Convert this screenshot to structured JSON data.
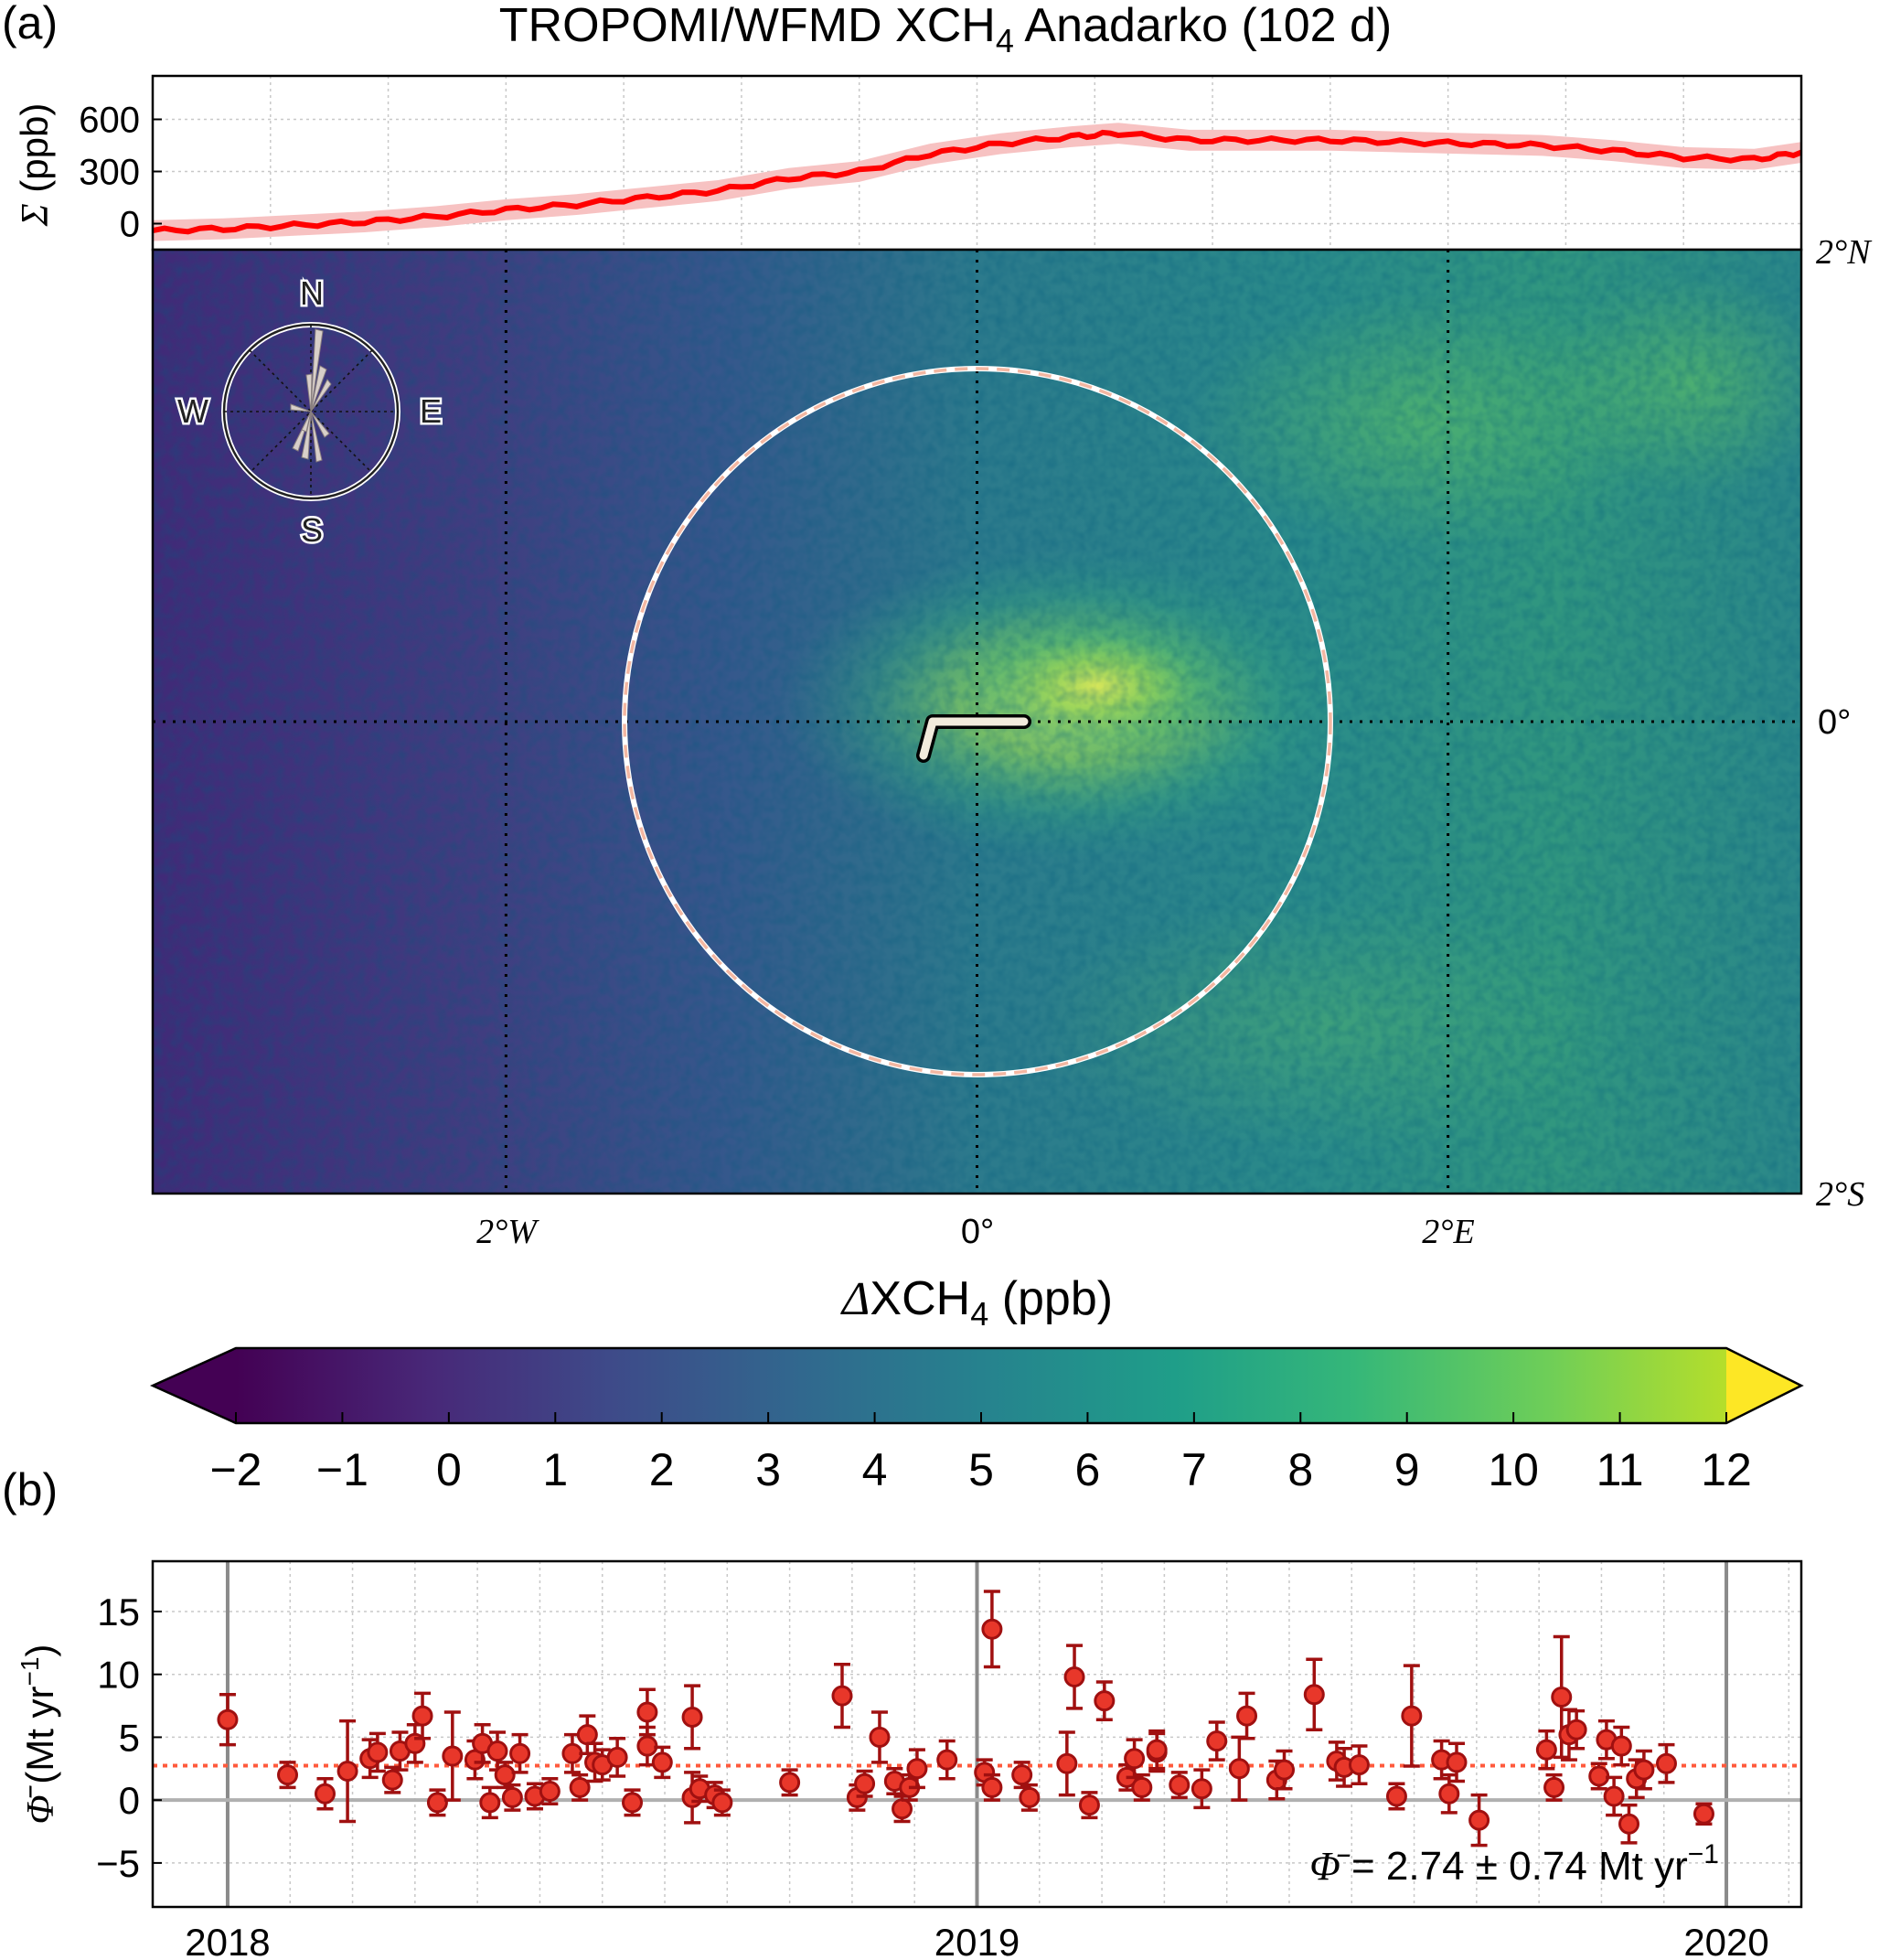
{
  "panel_a": {
    "label": "(a)",
    "title_main": "TROPOMI/WFMD XCH",
    "title_sub": "4",
    "title_tail": " Anadarko (102 d)",
    "sigma_axis": {
      "symbol": "Σ",
      "unit": " (ppb)",
      "ticks": [
        "600",
        "300",
        "0"
      ]
    },
    "lat_labels": {
      "top": "2°N",
      "mid": "0°",
      "bottom": "2°S"
    },
    "lon_labels": {
      "left": "2°W",
      "mid": "0°",
      "right": "2°E"
    },
    "compass": {
      "n": "N",
      "e": "E",
      "s": "S",
      "w": "W"
    },
    "colorbar": {
      "label_symbol": "Δ",
      "label_main": "XCH",
      "label_sub": "4",
      "label_unit": " (ppb)",
      "ticks": [
        "−2",
        "−1",
        "0",
        "1",
        "2",
        "3",
        "4",
        "5",
        "6",
        "7",
        "8",
        "9",
        "10",
        "11",
        "12"
      ]
    }
  },
  "panel_b": {
    "label": "(b)",
    "y_axis": {
      "symbol": "Φ̄",
      "unit": " (Mt yr",
      "exp": "−1",
      "close": ")",
      "ticks": [
        "15",
        "10",
        "5",
        "0",
        "−5"
      ]
    },
    "x_ticks": [
      "2018",
      "2019",
      "2020"
    ],
    "annotation": {
      "symbol": "Φ̄",
      "text": " = 2.74 ± 0.74 Mt yr",
      "exp": "−1"
    }
  },
  "colors": {
    "series_line": "#ff0000",
    "series_band": "#f7c2c2",
    "point_fill": "#e8372a",
    "point_edge": "#a01010",
    "mean_line": "#ff5a3c",
    "zero_line": "#b0b0b0",
    "circle": "#f3c8b4"
  },
  "chart_data": [
    {
      "type": "line",
      "panel": "a-top",
      "ylim": [
        -150,
        850
      ],
      "x_deg": [
        -3.5,
        -3.2,
        -2.9,
        -2.6,
        -2.3,
        -2.0,
        -1.7,
        -1.4,
        -1.1,
        -0.8,
        -0.5,
        -0.2,
        0.1,
        0.4,
        0.6,
        0.9,
        1.2,
        1.5,
        1.8,
        2.1,
        2.4,
        2.7,
        3.0,
        3.3,
        3.5
      ],
      "sigma": [
        -40,
        -30,
        -10,
        10,
        40,
        80,
        110,
        150,
        190,
        260,
        300,
        400,
        460,
        500,
        520,
        480,
        480,
        480,
        470,
        460,
        450,
        420,
        380,
        370,
        410
      ],
      "band_halfwidth": 60
    },
    {
      "type": "heatmap",
      "panel": "a-map",
      "x_range_deg": [
        -3.5,
        3.5
      ],
      "y_range_deg": [
        -2,
        2
      ],
      "colormap": "viridis",
      "vmin": -2,
      "vmax": 12,
      "circle_radius_deg": 1.5
    },
    {
      "type": "scatter",
      "panel": "b",
      "ylim": [
        -8.5,
        19
      ],
      "xlim": [
        2017.9,
        2020.1
      ],
      "mean": 2.74,
      "points": [
        [
          2018.0,
          6.4,
          2.0
        ],
        [
          2018.08,
          2.0,
          1.0
        ],
        [
          2018.13,
          0.5,
          1.2
        ],
        [
          2018.16,
          2.3,
          4.0
        ],
        [
          2018.19,
          3.3,
          1.5
        ],
        [
          2018.2,
          3.8,
          1.5
        ],
        [
          2018.22,
          1.6,
          1.0
        ],
        [
          2018.23,
          3.9,
          1.5
        ],
        [
          2018.25,
          4.5,
          1.5
        ],
        [
          2018.26,
          6.7,
          1.8
        ],
        [
          2018.28,
          -0.2,
          1.0
        ],
        [
          2018.3,
          3.5,
          3.5
        ],
        [
          2018.33,
          3.2,
          1.5
        ],
        [
          2018.34,
          4.5,
          1.5
        ],
        [
          2018.35,
          -0.2,
          1.2
        ],
        [
          2018.36,
          3.9,
          1.5
        ],
        [
          2018.37,
          2.0,
          1.0
        ],
        [
          2018.38,
          0.2,
          1.0
        ],
        [
          2018.39,
          3.7,
          1.5
        ],
        [
          2018.41,
          0.3,
          1.0
        ],
        [
          2018.43,
          0.7,
          1.0
        ],
        [
          2018.46,
          3.7,
          1.5
        ],
        [
          2018.47,
          1.0,
          1.0
        ],
        [
          2018.48,
          5.2,
          1.5
        ],
        [
          2018.49,
          3.0,
          1.5
        ],
        [
          2018.5,
          2.8,
          1.2
        ],
        [
          2018.52,
          3.4,
          1.5
        ],
        [
          2018.54,
          -0.2,
          1.0
        ],
        [
          2018.56,
          7.0,
          1.8
        ],
        [
          2018.56,
          4.3,
          1.5
        ],
        [
          2018.58,
          3.0,
          1.2
        ],
        [
          2018.62,
          6.6,
          2.5
        ],
        [
          2018.62,
          0.2,
          2.0
        ],
        [
          2018.63,
          0.9,
          1.0
        ],
        [
          2018.65,
          0.4,
          1.0
        ],
        [
          2018.66,
          -0.2,
          1.0
        ],
        [
          2018.75,
          1.4,
          1.0
        ],
        [
          2018.82,
          8.3,
          2.5
        ],
        [
          2018.84,
          0.2,
          1.0
        ],
        [
          2018.85,
          1.3,
          1.0
        ],
        [
          2018.87,
          5.0,
          2.0
        ],
        [
          2018.89,
          1.5,
          1.0
        ],
        [
          2018.9,
          -0.7,
          1.0
        ],
        [
          2018.91,
          1.0,
          1.0
        ],
        [
          2018.92,
          2.5,
          1.5
        ],
        [
          2018.96,
          3.2,
          1.5
        ],
        [
          2019.01,
          2.2,
          1.0
        ],
        [
          2019.02,
          13.6,
          3.0
        ],
        [
          2019.02,
          1.0,
          1.0
        ],
        [
          2019.06,
          2.0,
          1.0
        ],
        [
          2019.07,
          0.2,
          1.0
        ],
        [
          2019.12,
          2.9,
          2.5
        ],
        [
          2019.13,
          9.8,
          2.5
        ],
        [
          2019.15,
          -0.4,
          1.0
        ],
        [
          2019.17,
          7.9,
          1.5
        ],
        [
          2019.2,
          1.8,
          1.0
        ],
        [
          2019.21,
          3.3,
          1.5
        ],
        [
          2019.22,
          1.0,
          1.0
        ],
        [
          2019.24,
          3.8,
          1.5
        ],
        [
          2019.24,
          4.0,
          1.5
        ],
        [
          2019.27,
          1.2,
          1.0
        ],
        [
          2019.3,
          0.9,
          1.5
        ],
        [
          2019.32,
          4.7,
          1.5
        ],
        [
          2019.35,
          2.5,
          2.5
        ],
        [
          2019.36,
          6.7,
          1.8
        ],
        [
          2019.4,
          1.6,
          1.5
        ],
        [
          2019.41,
          2.4,
          1.5
        ],
        [
          2019.45,
          8.4,
          2.8
        ],
        [
          2019.48,
          3.1,
          1.5
        ],
        [
          2019.49,
          2.6,
          1.5
        ],
        [
          2019.51,
          2.8,
          1.5
        ],
        [
          2019.56,
          0.3,
          1.0
        ],
        [
          2019.58,
          6.7,
          4.0
        ],
        [
          2019.62,
          3.2,
          1.5
        ],
        [
          2019.63,
          0.5,
          1.5
        ],
        [
          2019.64,
          3.0,
          1.5
        ],
        [
          2019.67,
          -1.6,
          2.0
        ],
        [
          2019.76,
          4.0,
          1.5
        ],
        [
          2019.77,
          1.0,
          1.0
        ],
        [
          2019.78,
          8.2,
          4.8
        ],
        [
          2019.79,
          5.2,
          2.0
        ],
        [
          2019.8,
          5.6,
          1.5
        ],
        [
          2019.83,
          1.9,
          1.0
        ],
        [
          2019.84,
          4.8,
          1.5
        ],
        [
          2019.85,
          0.3,
          1.5
        ],
        [
          2019.86,
          4.3,
          1.5
        ],
        [
          2019.87,
          -1.9,
          1.5
        ],
        [
          2019.88,
          1.7,
          1.5
        ],
        [
          2019.89,
          2.4,
          1.5
        ],
        [
          2019.92,
          2.9,
          1.5
        ],
        [
          2019.97,
          -1.1,
          0.8
        ]
      ]
    }
  ]
}
